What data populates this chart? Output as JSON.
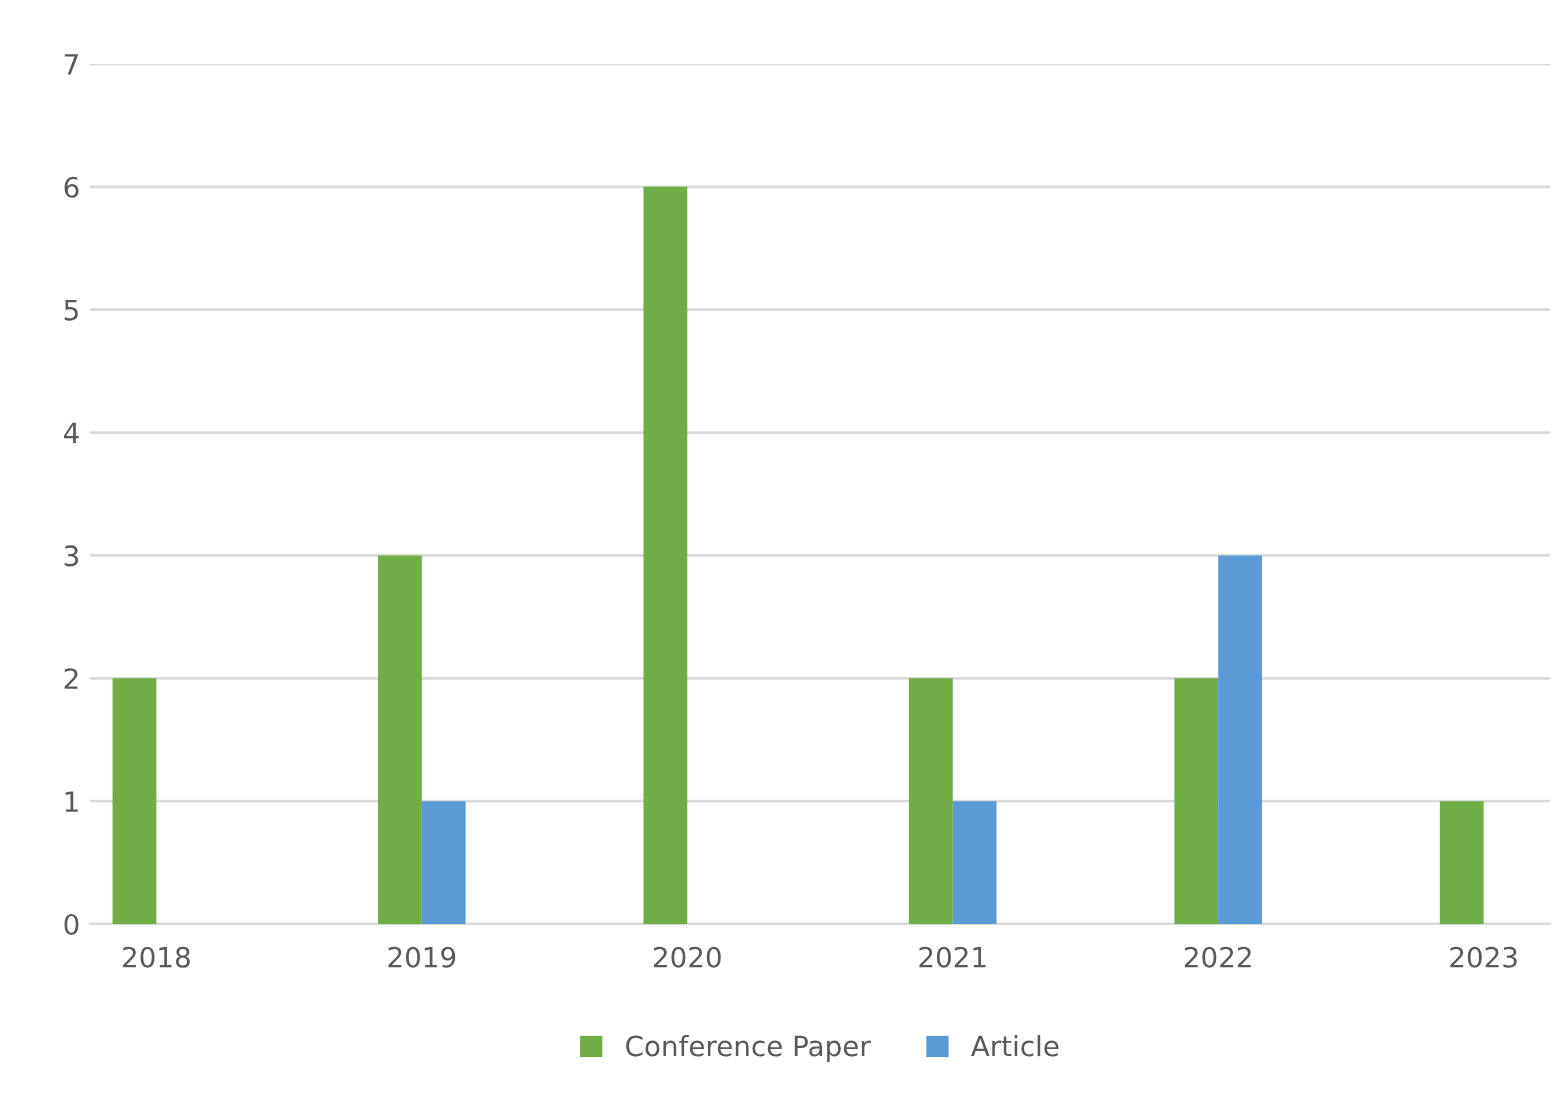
{
  "chart_data": {
    "type": "bar",
    "categories": [
      "2018",
      "2019",
      "2020",
      "2021",
      "2022",
      "2023"
    ],
    "series": [
      {
        "name": "Conference Paper",
        "color": "#70ad47",
        "values": [
          2,
          3,
          6,
          2,
          2,
          1
        ]
      },
      {
        "name": "Article",
        "color": "#5b9bd5",
        "values": [
          0,
          1,
          0,
          1,
          3,
          0
        ]
      }
    ],
    "ylim": [
      0,
      7
    ],
    "yticks": [
      0,
      1,
      2,
      3,
      4,
      5,
      6,
      7
    ],
    "grid": "y",
    "legend": "bottom"
  }
}
